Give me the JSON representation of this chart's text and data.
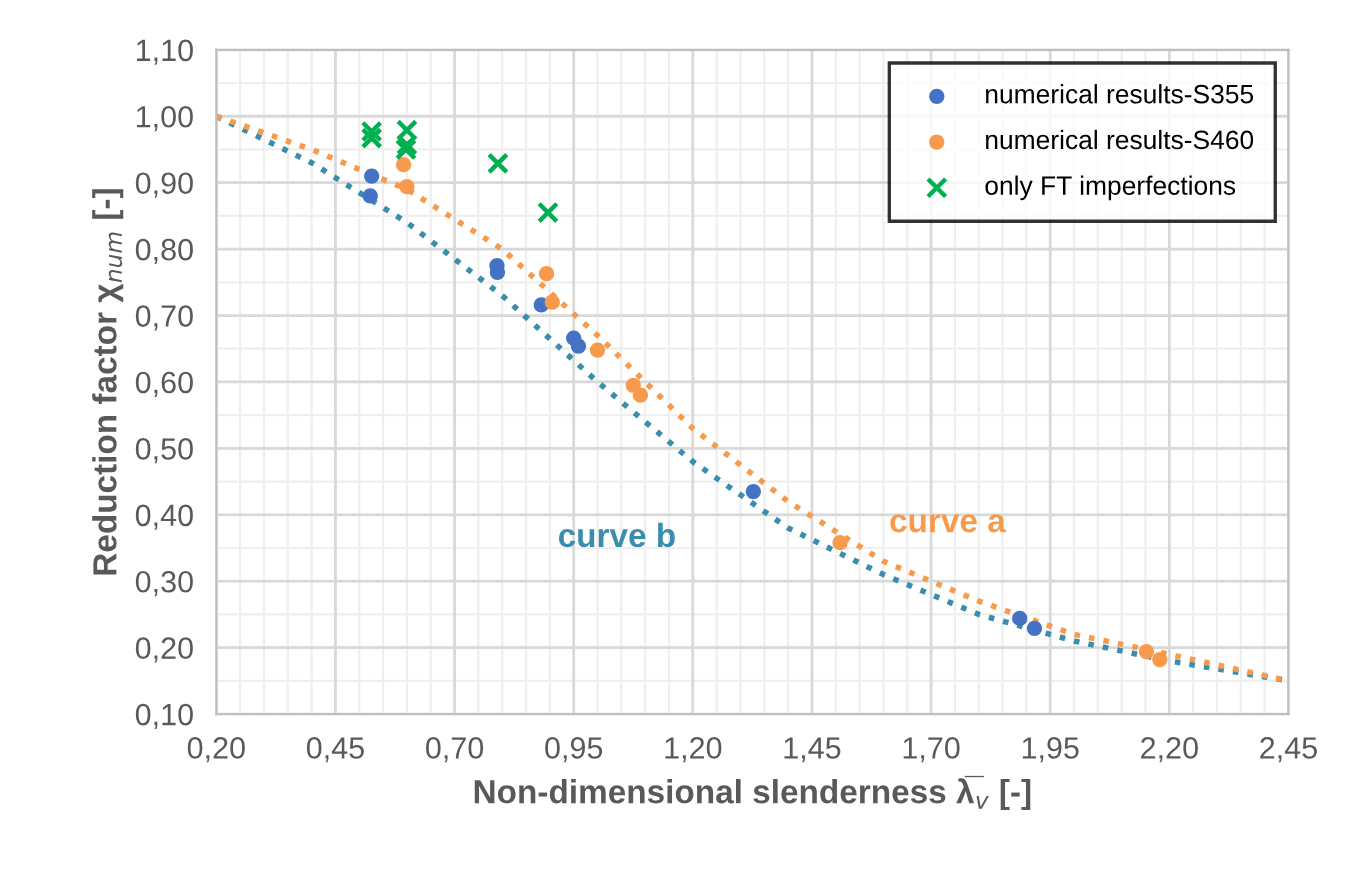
{
  "chart_data": {
    "type": "scatter",
    "xlabel": "Non-dimensional slenderness λ̅$_{v}$ [-]",
    "ylabel": "Reduction factor χ$_{num}$ [-]",
    "xlim": [
      0.2,
      2.45
    ],
    "ylim": [
      0.1,
      1.1
    ],
    "xticks": [
      {
        "value": 0.2,
        "label": "0,20"
      },
      {
        "value": 0.45,
        "label": "0,45"
      },
      {
        "value": 0.7,
        "label": "0,70"
      },
      {
        "value": 0.95,
        "label": "0,95"
      },
      {
        "value": 1.2,
        "label": "1,20"
      },
      {
        "value": 1.45,
        "label": "1,45"
      },
      {
        "value": 1.7,
        "label": "1,70"
      },
      {
        "value": 1.95,
        "label": "1,95"
      },
      {
        "value": 2.2,
        "label": "2,20"
      },
      {
        "value": 2.45,
        "label": "2,45"
      }
    ],
    "yticks": [
      {
        "value": 0.1,
        "label": "0,10"
      },
      {
        "value": 0.2,
        "label": "0,20"
      },
      {
        "value": 0.3,
        "label": "0,30"
      },
      {
        "value": 0.4,
        "label": "0,40"
      },
      {
        "value": 0.5,
        "label": "0,50"
      },
      {
        "value": 0.6,
        "label": "0,60"
      },
      {
        "value": 0.7,
        "label": "0,70"
      },
      {
        "value": 0.8,
        "label": "0,80"
      },
      {
        "value": 0.9,
        "label": "0,90"
      },
      {
        "value": 1.0,
        "label": "1,00"
      },
      {
        "value": 1.1,
        "label": "1,10"
      }
    ],
    "grid": true,
    "legend": "top right",
    "series": [
      {
        "type": "line",
        "name": "curve b",
        "color": "#3a8dac",
        "marker": "none",
        "line_style": "dotted",
        "x": [
          0.2,
          0.4,
          0.6,
          0.8,
          1.0,
          1.2,
          1.4,
          1.6,
          1.8,
          2.0,
          2.2,
          2.45
        ],
        "values": [
          1.0,
          0.93,
          0.84,
          0.73,
          0.6,
          0.48,
          0.38,
          0.31,
          0.25,
          0.21,
          0.18,
          0.15
        ]
      },
      {
        "type": "line",
        "name": "curve a",
        "color": "#f79a4c",
        "marker": "none",
        "line_style": "dotted",
        "x": [
          0.2,
          0.4,
          0.6,
          0.8,
          1.0,
          1.2,
          1.4,
          1.6,
          1.8,
          2.0,
          2.2,
          2.45
        ],
        "values": [
          1.0,
          0.95,
          0.89,
          0.8,
          0.67,
          0.53,
          0.42,
          0.33,
          0.27,
          0.22,
          0.19,
          0.15
        ]
      },
      {
        "name": "numerical results-S355",
        "color": "#4472c4",
        "marker": "circle",
        "x": [
          0.526,
          0.523,
          0.789,
          0.79,
          0.882,
          0.95,
          0.96,
          1.327,
          1.886,
          1.917
        ],
        "values": [
          0.91,
          0.88,
          0.775,
          0.765,
          0.716,
          0.666,
          0.654,
          0.435,
          0.244,
          0.229
        ]
      },
      {
        "name": "numerical results-S460",
        "color": "#f79a4c",
        "marker": "circle",
        "x": [
          0.593,
          0.6,
          0.893,
          0.905,
          1.0,
          1.075,
          1.09,
          1.509,
          2.152,
          2.18
        ],
        "values": [
          0.927,
          0.894,
          0.763,
          0.72,
          0.648,
          0.595,
          0.58,
          0.358,
          0.194,
          0.182
        ]
      },
      {
        "name": "only FT imperfections",
        "color": "#00b050",
        "marker": "cross",
        "x": [
          0.526,
          0.526,
          0.6,
          0.6,
          0.598,
          0.791,
          0.896
        ],
        "values": [
          0.977,
          0.967,
          0.979,
          0.957,
          0.95,
          0.929,
          0.855
        ]
      }
    ]
  }
}
